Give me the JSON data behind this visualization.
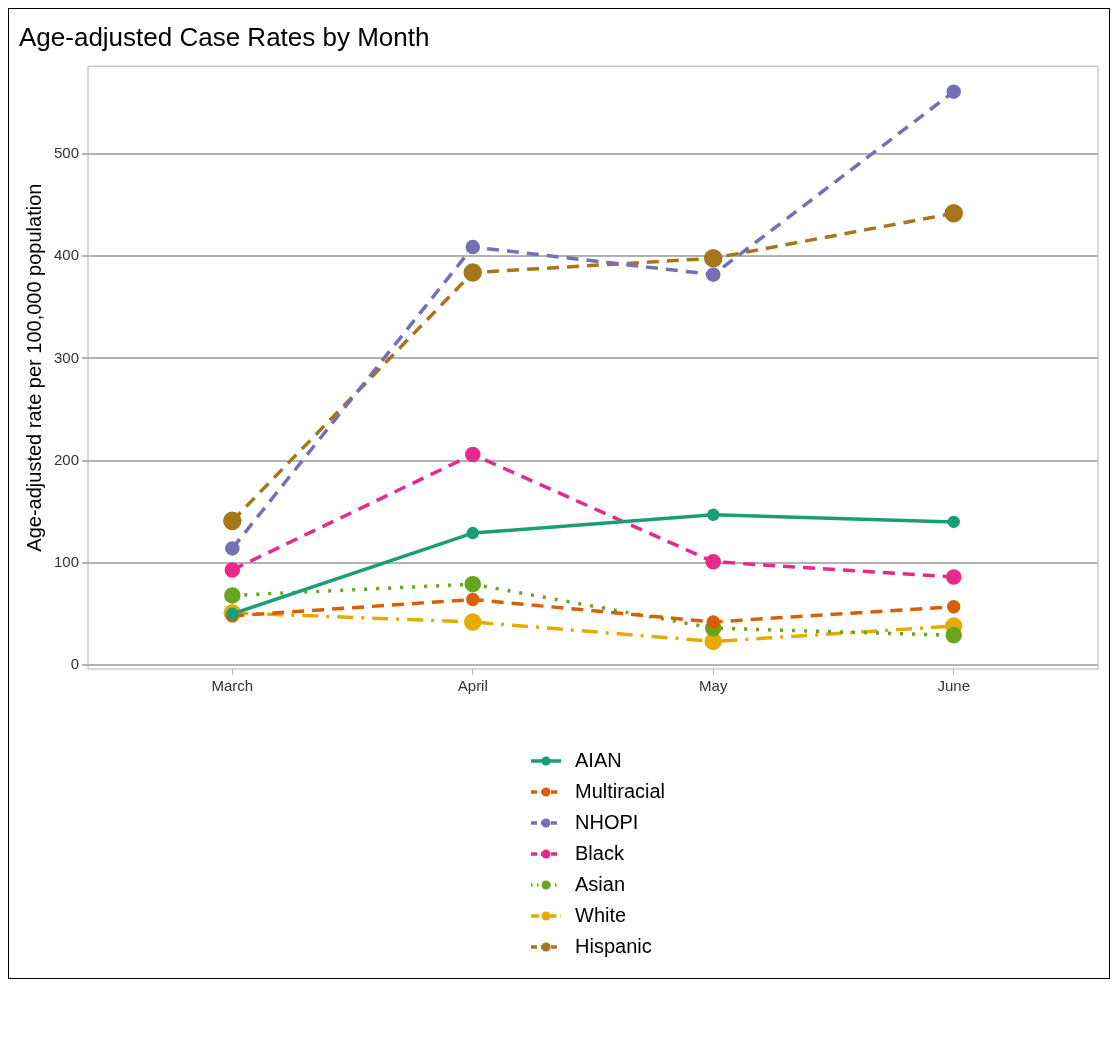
{
  "chart_data": {
    "type": "line",
    "title": "Age-adjusted Case Rates by Month",
    "ylabel": "Age-adjusted rate per 100,000 population",
    "categories": [
      "March",
      "April",
      "May",
      "June"
    ],
    "series": [
      {
        "name": "AIAN",
        "color": "#1b9e77",
        "values": [
          50,
          129,
          147,
          140
        ],
        "line_style": "solid"
      },
      {
        "name": "Multiracial",
        "color": "#d95f02",
        "values": [
          48,
          64,
          42,
          57
        ],
        "line_style": "dashed"
      },
      {
        "name": "NHOPI",
        "color": "#7570b3",
        "values": [
          114,
          409,
          382,
          561
        ],
        "line_style": "dashed"
      },
      {
        "name": "Black",
        "color": "#e7298a",
        "values": [
          93,
          206,
          101,
          86
        ],
        "line_style": "dashed"
      },
      {
        "name": "Asian",
        "color": "#66a61e",
        "values": [
          68,
          79,
          36,
          29
        ],
        "line_style": "dotted"
      },
      {
        "name": "White",
        "color": "#e6ab02",
        "values": [
          51,
          42,
          23,
          38
        ],
        "line_style": "dashdot"
      },
      {
        "name": "Hispanic",
        "color": "#a6761d",
        "values": [
          141,
          384,
          398,
          442
        ],
        "line_style": "dashed"
      }
    ],
    "ylim": [
      -4,
      586
    ],
    "yticks": [
      0,
      100,
      200,
      300,
      400,
      500
    ],
    "grid": "y",
    "legend": "bottom",
    "marker": "circle"
  }
}
